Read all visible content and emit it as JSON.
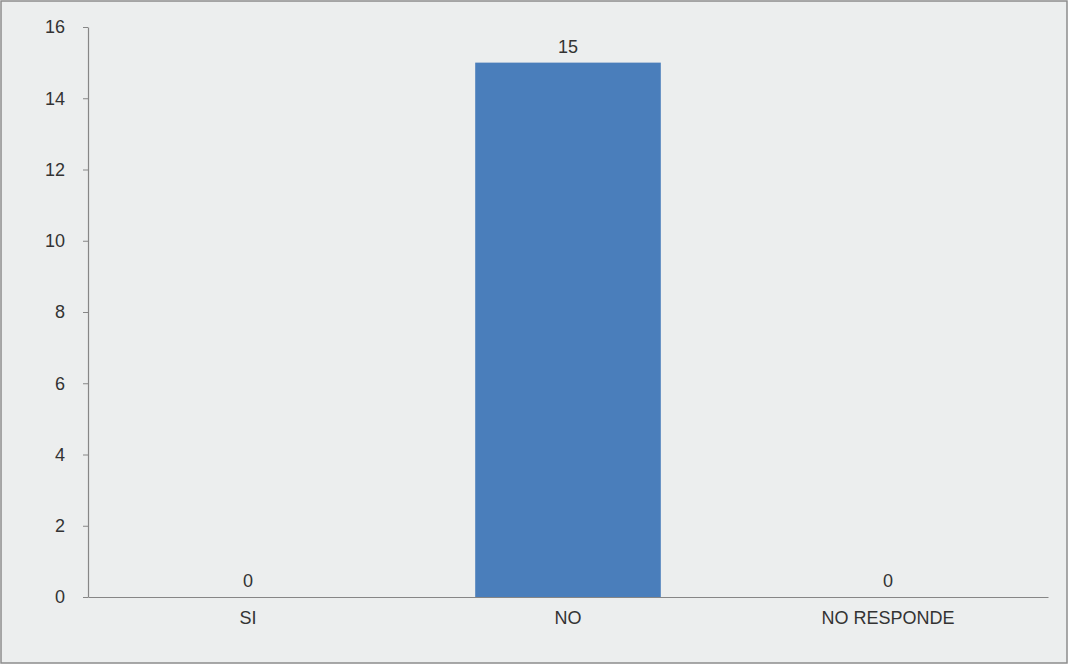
{
  "chart_data": {
    "type": "bar",
    "categories": [
      "SI",
      "NO",
      "NO RESPONDE"
    ],
    "values": [
      0,
      15,
      0
    ],
    "color": "#4a7ebb",
    "ylim": [
      0,
      16
    ],
    "yticks": [
      0,
      2,
      4,
      6,
      8,
      10,
      12,
      14,
      16
    ],
    "grid": false,
    "data_labels": true
  }
}
